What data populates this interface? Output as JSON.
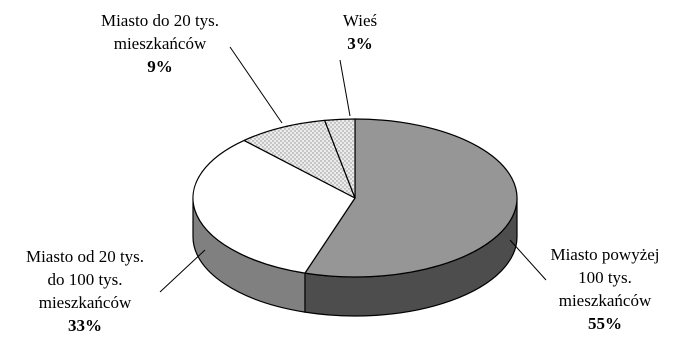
{
  "chart_data": {
    "type": "pie",
    "style": "3d",
    "slices": [
      {
        "label": "Miasto powyżej 100 tys. mieszkańców",
        "label_lines": [
          "Miasto powyżej",
          "100 tys.",
          "mieszkańców"
        ],
        "value": 55,
        "value_label": "55%",
        "color": "#969696",
        "side_color": "#4d4d4d"
      },
      {
        "label": "Miasto od 20 tys. do 100 tys. mieszkańców",
        "label_lines": [
          "Miasto od 20 tys.",
          "do 100 tys.",
          "mieszkańców"
        ],
        "value": 33,
        "value_label": "33%",
        "color": "#ffffff",
        "side_color": "#808080"
      },
      {
        "label": "Miasto do 20 tys. mieszkańców",
        "label_lines": [
          "Miasto do 20 tys.",
          "mieszkańców"
        ],
        "value": 9,
        "value_label": "9%",
        "color": "#e6e6e6",
        "side_color": "#b3b3b3",
        "pattern": "dotted"
      },
      {
        "label": "Wieś",
        "label_lines": [
          "Wieś"
        ],
        "value": 3,
        "value_label": "3%",
        "color": "#f2f2f2",
        "side_color": "#bdbdbd",
        "pattern": "dotted"
      }
    ]
  }
}
